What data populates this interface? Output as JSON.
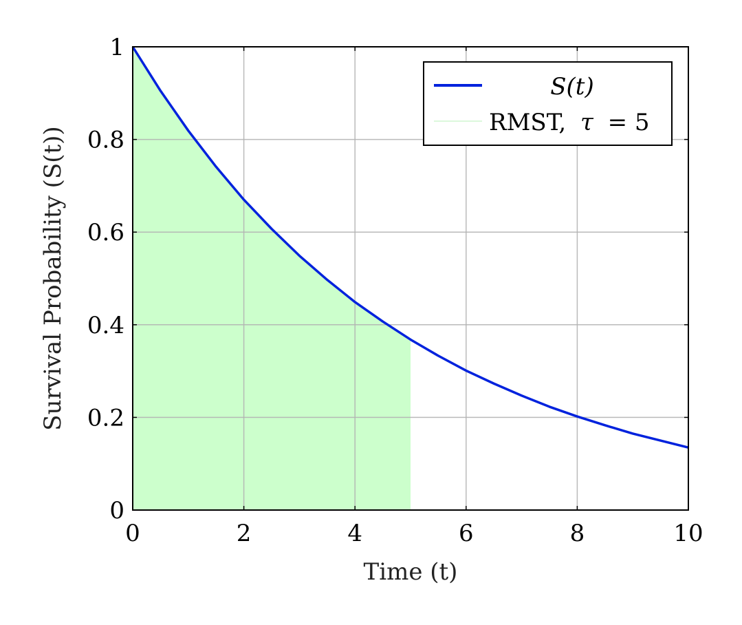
{
  "chart_data": {
    "type": "area",
    "title": "",
    "xlabel": "Time (t)",
    "ylabel": "Survival Probability (S(t))",
    "xlim": [
      0,
      10
    ],
    "ylim": [
      0,
      1
    ],
    "xticks": [
      0,
      2,
      4,
      6,
      8,
      10
    ],
    "yticks": [
      0,
      0.2,
      0.4,
      0.6,
      0.8,
      1
    ],
    "xtick_labels": [
      "0",
      "2",
      "4",
      "6",
      "8",
      "10"
    ],
    "ytick_labels": [
      "0",
      "0.2",
      "0.4",
      "0.6",
      "0.8",
      "1"
    ],
    "grid": true,
    "legend_position": "top-right",
    "series": [
      {
        "name": "S(t)",
        "kind": "line",
        "color": "#0022dd",
        "x": [
          0,
          0.5,
          1,
          1.5,
          2,
          2.5,
          3,
          3.5,
          4,
          4.5,
          5,
          5.5,
          6,
          6.5,
          7,
          7.5,
          8,
          8.5,
          9,
          9.5,
          10
        ],
        "y": [
          1.0,
          0.905,
          0.819,
          0.741,
          0.67,
          0.607,
          0.549,
          0.497,
          0.449,
          0.407,
          0.368,
          0.333,
          0.301,
          0.273,
          0.247,
          0.223,
          0.202,
          0.183,
          0.165,
          0.15,
          0.135
        ]
      },
      {
        "name": "RMST, τ = 5",
        "kind": "area",
        "color": "#ccffcc",
        "x": [
          0,
          0.5,
          1,
          1.5,
          2,
          2.5,
          3,
          3.5,
          4,
          4.5,
          5
        ],
        "y": [
          1.0,
          0.905,
          0.819,
          0.741,
          0.67,
          0.607,
          0.549,
          0.497,
          0.449,
          0.407,
          0.368
        ]
      }
    ],
    "legend": {
      "line_label": "S(t)",
      "area_label_prefix": "RMST,",
      "area_label_symbol": "τ",
      "area_label_suffix": "= 5"
    },
    "colors": {
      "line": "#0022dd",
      "fill": "#ccffcc",
      "grid": "#b3b3b3",
      "axis": "#000000"
    }
  }
}
